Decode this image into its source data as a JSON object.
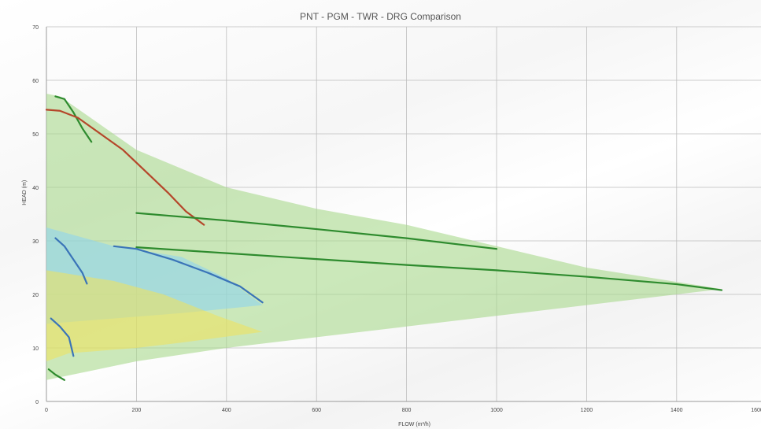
{
  "chart_data": {
    "type": "line",
    "title": "PNT - PGM - TWR - DRG Comparison",
    "xlabel": "FLOW (m³/h)",
    "ylabel": "HEAD (m)",
    "xlim": [
      0,
      1600
    ],
    "ylim": [
      0,
      70
    ],
    "x_ticks": [
      "0",
      "200",
      "400",
      "600",
      "800",
      "1000",
      "1200",
      "1400",
      "1600"
    ],
    "y_ticks": [
      "0",
      "10",
      "20",
      "30",
      "40",
      "50",
      "60",
      "70"
    ],
    "grid": true,
    "legend": "none",
    "areas": [
      {
        "color": "#a9d98c",
        "opacity": 0.6,
        "points": [
          [
            0,
            57.5
          ],
          [
            30,
            57
          ],
          [
            200,
            47
          ],
          [
            400,
            40
          ],
          [
            600,
            36
          ],
          [
            800,
            33
          ],
          [
            1000,
            29
          ],
          [
            1200,
            25
          ],
          [
            1500,
            21
          ],
          [
            1200,
            18
          ],
          [
            800,
            14
          ],
          [
            400,
            10
          ],
          [
            200,
            7.5
          ],
          [
            0,
            4
          ]
        ]
      },
      {
        "color": "#8fd3ee",
        "opacity": 0.6,
        "points": [
          [
            0,
            32.5
          ],
          [
            150,
            29
          ],
          [
            300,
            27
          ],
          [
            400,
            23
          ],
          [
            480,
            18
          ],
          [
            300,
            16.5
          ],
          [
            0,
            14.5
          ]
        ]
      },
      {
        "color": "#f2e25a",
        "opacity": 0.55,
        "points": [
          [
            0,
            24.5
          ],
          [
            150,
            22.5
          ],
          [
            260,
            20
          ],
          [
            380,
            16
          ],
          [
            480,
            13
          ],
          [
            300,
            11
          ],
          [
            200,
            10
          ],
          [
            50,
            9
          ],
          [
            0,
            7.5
          ]
        ]
      }
    ],
    "series": [
      {
        "color": "#2e8b2e",
        "points": [
          [
            20,
            57
          ],
          [
            40,
            56.5
          ],
          [
            60,
            54
          ],
          [
            80,
            51
          ],
          [
            100,
            48.5
          ]
        ]
      },
      {
        "color": "#b5462a",
        "points": [
          [
            0,
            54.5
          ],
          [
            30,
            54.3
          ],
          [
            70,
            53
          ],
          [
            120,
            50
          ],
          [
            170,
            47
          ],
          [
            220,
            43
          ],
          [
            270,
            39
          ],
          [
            310,
            35.5
          ],
          [
            350,
            33
          ]
        ]
      },
      {
        "color": "#2e8b2e",
        "points": [
          [
            200,
            35.2
          ],
          [
            400,
            33.8
          ],
          [
            600,
            32.2
          ],
          [
            800,
            30.5
          ],
          [
            1000,
            28.5
          ]
        ]
      },
      {
        "color": "#2e8b2e",
        "points": [
          [
            200,
            28.8
          ],
          [
            400,
            27.7
          ],
          [
            600,
            26.6
          ],
          [
            800,
            25.5
          ],
          [
            1000,
            24.5
          ],
          [
            1200,
            23.3
          ],
          [
            1400,
            21.9
          ],
          [
            1500,
            20.8
          ]
        ]
      },
      {
        "color": "#3a74b8",
        "points": [
          [
            20,
            30.5
          ],
          [
            40,
            29
          ],
          [
            60,
            26.5
          ],
          [
            80,
            24
          ],
          [
            90,
            22
          ]
        ]
      },
      {
        "color": "#3a74b8",
        "points": [
          [
            150,
            29
          ],
          [
            200,
            28.5
          ],
          [
            280,
            26.5
          ],
          [
            360,
            24
          ],
          [
            430,
            21.5
          ],
          [
            480,
            18.5
          ]
        ]
      },
      {
        "color": "#3a74b8",
        "points": [
          [
            10,
            15.5
          ],
          [
            30,
            14
          ],
          [
            50,
            12
          ],
          [
            60,
            8.5
          ]
        ]
      },
      {
        "color": "#2e8b2e",
        "points": [
          [
            5,
            6
          ],
          [
            20,
            5
          ],
          [
            40,
            4
          ]
        ]
      }
    ]
  }
}
